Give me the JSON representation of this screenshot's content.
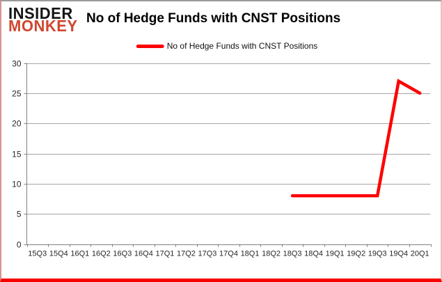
{
  "logo": {
    "line1": "INSIDER",
    "line2": "MONKEY"
  },
  "title": "No of Hedge Funds with CNST Positions",
  "legend": {
    "label": "No of Hedge Funds with CNST Positions"
  },
  "colors": {
    "series": "#ff0000",
    "logo_red": "#d1462f",
    "gridline": "#a6a6a6",
    "axis": "#808080",
    "tick_text": "#262626",
    "title_text": "#000000"
  },
  "chart_data": {
    "type": "line",
    "title": "No of Hedge Funds with CNST Positions",
    "categories": [
      "15Q3",
      "15Q4",
      "16Q1",
      "16Q2",
      "16Q3",
      "16Q4",
      "17Q1",
      "17Q2",
      "17Q3",
      "17Q4",
      "18Q1",
      "18Q2",
      "18Q3",
      "18Q4",
      "19Q1",
      "19Q2",
      "19Q3",
      "19Q4",
      "20Q1"
    ],
    "series": [
      {
        "name": "No of Hedge Funds with CNST Positions",
        "color": "#ff0000",
        "values": [
          null,
          null,
          null,
          null,
          null,
          null,
          null,
          null,
          null,
          null,
          null,
          null,
          8,
          8,
          8,
          8,
          8,
          27,
          25
        ]
      }
    ],
    "xlabel": "",
    "ylabel": "",
    "ylim": [
      0,
      30
    ],
    "yticks": [
      0,
      5,
      10,
      15,
      20,
      25,
      30
    ],
    "grid": true,
    "legend_position": "top-center"
  }
}
